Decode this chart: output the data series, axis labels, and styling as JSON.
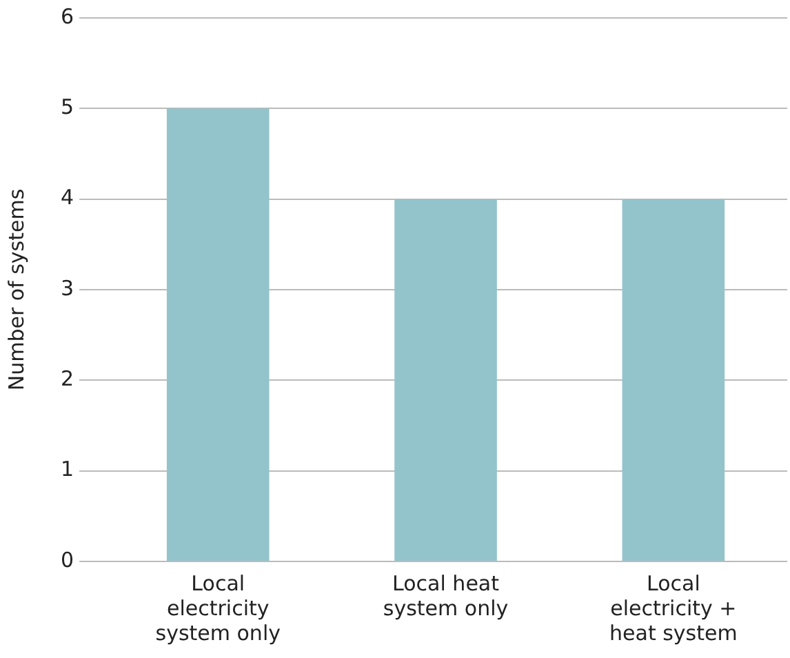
{
  "chart_data": {
    "type": "bar",
    "ylabel": "Number of systems",
    "categories": [
      "Local electricity system only",
      "Local heat system only",
      "Local electricity + heat system"
    ],
    "values": [
      5,
      4,
      4
    ],
    "color": "#93c4cb",
    "ylim": [
      0,
      6
    ],
    "yticks": [
      0,
      1,
      2,
      3,
      4,
      5,
      6
    ],
    "grid": "y"
  }
}
